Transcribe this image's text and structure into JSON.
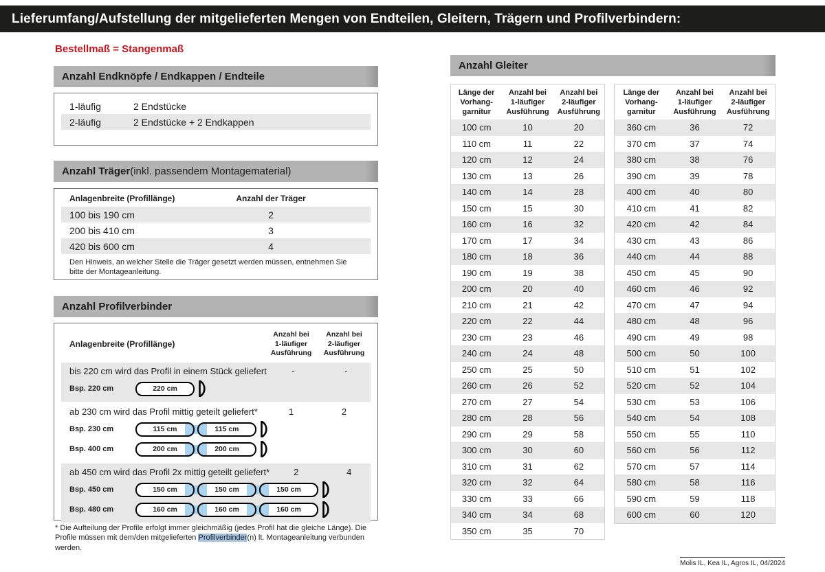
{
  "header": {
    "title": "Lieferumfang/Aufstellung der mitgelieferten Mengen von Endteilen, Gleitern, Trägern und Profilverbindern:"
  },
  "left": {
    "note_red": "Bestellmaß = Stangenmaß",
    "endpieces": {
      "title": "Anzahl Endknöpfe / Endkappen / Endteile",
      "rows": [
        {
          "label": "1-läufig",
          "value": "2 Endstücke"
        },
        {
          "label": "2-läufig",
          "value": "2 Endstücke + 2 Endkappen"
        }
      ]
    },
    "traeger": {
      "title_bold": "Anzahl Träger",
      "title_rest": " (inkl. passendem Montagematerial)",
      "col1": "Anlagenbreite (Profillänge)",
      "col2": "Anzahl der Träger",
      "rows": [
        {
          "range": "100 bis 190 cm",
          "count": "2"
        },
        {
          "range": "200 bis 410 cm",
          "count": "3"
        },
        {
          "range": "420 bis 600 cm",
          "count": "4"
        }
      ],
      "note": "Den Hinweis, an welcher Stelle die Träger gesetzt werden müssen, entnehmen Sie bitte der Montageanleitung."
    },
    "profilverbinder": {
      "title": "Anzahl Profilverbinder",
      "col_left": "Anlagenbreite (Profillänge)",
      "col1": [
        "Anzahl bei",
        "1-läufiger",
        "Ausführung"
      ],
      "col2": [
        "Anzahl bei",
        "2-läufiger",
        "Ausführung"
      ],
      "groups": [
        {
          "text": "bis 220 cm wird das Profil in einem Stück geliefert",
          "v1": "-",
          "v2": "-",
          "examples": [
            {
              "label": "Bsp. 220 cm",
              "segments": [
                "220 cm"
              ]
            }
          ]
        },
        {
          "text": "ab 230 cm wird das Profil mittig geteilt geliefert*",
          "v1": "1",
          "v2": "2",
          "examples": [
            {
              "label": "Bsp. 230 cm",
              "segments": [
                "115 cm",
                "115 cm"
              ]
            },
            {
              "label": "Bsp. 400 cm",
              "segments": [
                "200 cm",
                "200 cm"
              ]
            }
          ]
        },
        {
          "text": "ab 450 cm wird das Profil 2x mittig geteilt geliefert*",
          "v1": "2",
          "v2": "4",
          "examples": [
            {
              "label": "Bsp. 450 cm",
              "segments": [
                "150 cm",
                "150 cm",
                "150 cm"
              ]
            },
            {
              "label": "Bsp. 480 cm",
              "segments": [
                "160 cm",
                "160 cm",
                "160 cm"
              ]
            }
          ]
        }
      ],
      "footnote_pre": "* Die Aufteilung der Profile erfolgt immer gleichmäßig (jedes Profil hat die gleiche Länge). Die Profile müssen mit dem/den mitgelieferten ",
      "footnote_highlight": "Profilverbinder",
      "footnote_post": "(n) lt. Montageanleitung verbunden werden."
    }
  },
  "gleiter": {
    "title": "Anzahl Gleiter",
    "headers": {
      "col_length": [
        "Länge der",
        "Vorhang-",
        "garnitur"
      ],
      "col_one": [
        "Anzahl bei",
        "1-läufiger",
        "Ausführung"
      ],
      "col_two": [
        "Anzahl bei",
        "2-läufiger",
        "Ausführung"
      ]
    },
    "table1": [
      [
        "100 cm",
        "10",
        "20"
      ],
      [
        "110 cm",
        "11",
        "22"
      ],
      [
        "120 cm",
        "12",
        "24"
      ],
      [
        "130 cm",
        "13",
        "26"
      ],
      [
        "140 cm",
        "14",
        "28"
      ],
      [
        "150 cm",
        "15",
        "30"
      ],
      [
        "160 cm",
        "16",
        "32"
      ],
      [
        "170 cm",
        "17",
        "34"
      ],
      [
        "180 cm",
        "18",
        "36"
      ],
      [
        "190 cm",
        "19",
        "38"
      ],
      [
        "200 cm",
        "20",
        "40"
      ],
      [
        "210 cm",
        "21",
        "42"
      ],
      [
        "220 cm",
        "22",
        "44"
      ],
      [
        "230 cm",
        "23",
        "46"
      ],
      [
        "240 cm",
        "24",
        "48"
      ],
      [
        "250 cm",
        "25",
        "50"
      ],
      [
        "260 cm",
        "26",
        "52"
      ],
      [
        "270 cm",
        "27",
        "54"
      ],
      [
        "280 cm",
        "28",
        "56"
      ],
      [
        "290 cm",
        "29",
        "58"
      ],
      [
        "300 cm",
        "30",
        "60"
      ],
      [
        "310 cm",
        "31",
        "62"
      ],
      [
        "320 cm",
        "32",
        "64"
      ],
      [
        "330 cm",
        "33",
        "66"
      ],
      [
        "340 cm",
        "34",
        "68"
      ],
      [
        "350 cm",
        "35",
        "70"
      ]
    ],
    "table2": [
      [
        "360 cm",
        "36",
        "72"
      ],
      [
        "370 cm",
        "37",
        "74"
      ],
      [
        "380 cm",
        "38",
        "76"
      ],
      [
        "390 cm",
        "39",
        "78"
      ],
      [
        "400 cm",
        "40",
        "80"
      ],
      [
        "410 cm",
        "41",
        "82"
      ],
      [
        "420 cm",
        "42",
        "84"
      ],
      [
        "430 cm",
        "43",
        "86"
      ],
      [
        "440 cm",
        "44",
        "88"
      ],
      [
        "450 cm",
        "45",
        "90"
      ],
      [
        "460 cm",
        "46",
        "92"
      ],
      [
        "470 cm",
        "47",
        "94"
      ],
      [
        "480 cm",
        "48",
        "96"
      ],
      [
        "490 cm",
        "49",
        "98"
      ],
      [
        "500 cm",
        "50",
        "100"
      ],
      [
        "510 cm",
        "51",
        "102"
      ],
      [
        "520 cm",
        "52",
        "104"
      ],
      [
        "530 cm",
        "53",
        "106"
      ],
      [
        "540 cm",
        "54",
        "108"
      ],
      [
        "550 cm",
        "55",
        "110"
      ],
      [
        "560 cm",
        "56",
        "112"
      ],
      [
        "570 cm",
        "57",
        "114"
      ],
      [
        "580 cm",
        "58",
        "116"
      ],
      [
        "590 cm",
        "59",
        "118"
      ],
      [
        "600 cm",
        "60",
        "120"
      ]
    ]
  },
  "footer": "Molis IL, Kea IL, Agros IL, 04/2024",
  "colors": {
    "ink": "#1d1d1b",
    "red": "#c2151e",
    "bargray": "#b3b3b3",
    "rowgray": "#e7e7e7",
    "blue": "#a9d3ee",
    "hl": "#a9c5e6"
  }
}
